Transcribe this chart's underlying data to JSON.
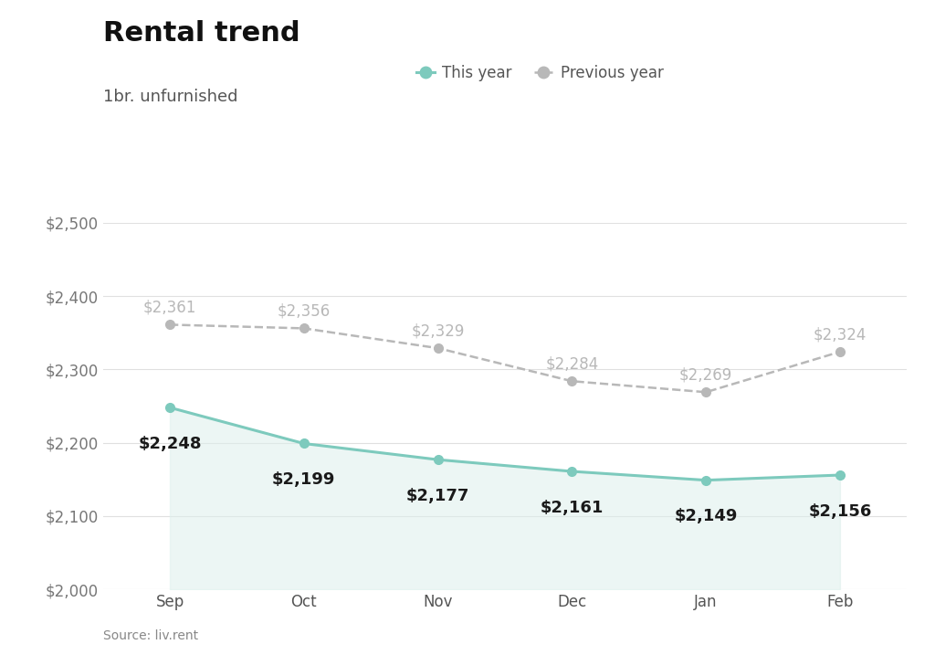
{
  "title": "Rental trend",
  "subtitle": "1br. unfurnished",
  "source": "Source: liv.rent",
  "months": [
    "Sep",
    "Oct",
    "Nov",
    "Dec",
    "Jan",
    "Feb"
  ],
  "this_year_values": [
    2248,
    2199,
    2177,
    2161,
    2149,
    2156
  ],
  "prev_year_values": [
    2361,
    2356,
    2329,
    2284,
    2269,
    2324
  ],
  "this_year_color": "#7dcabd",
  "this_year_fill": "#ddf0ec",
  "this_year_fill_alpha": 0.55,
  "prev_year_color": "#b8b8b8",
  "background_color": "#ffffff",
  "grid_color": "#e0e0e0",
  "ylim": [
    2000,
    2500
  ],
  "yticks": [
    2000,
    2100,
    2200,
    2300,
    2400,
    2500
  ],
  "title_fontsize": 22,
  "subtitle_fontsize": 13,
  "legend_fontsize": 12,
  "tick_fontsize": 12,
  "annotation_fontsize_this": 13,
  "annotation_fontsize_prev": 12,
  "legend_this_year": "This year",
  "legend_prev_year": "Previous year"
}
